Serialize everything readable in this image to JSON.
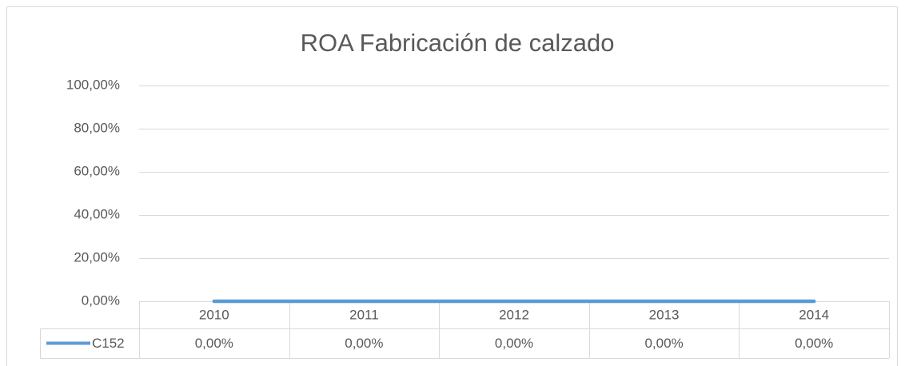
{
  "chart_data": {
    "type": "line",
    "title": "ROA Fabricación de calzado",
    "categories": [
      "2010",
      "2011",
      "2012",
      "2013",
      "2014"
    ],
    "series": [
      {
        "name": "C152",
        "color": "#5b9bd5",
        "values": [
          0,
          0,
          0,
          0,
          0
        ],
        "value_labels": [
          "0,00%",
          "0,00%",
          "0,00%",
          "0,00%",
          "0,00%"
        ]
      }
    ],
    "ylim": [
      0,
      100
    ],
    "yticks": [
      {
        "value": 0,
        "label": "0,00%"
      },
      {
        "value": 20,
        "label": "20,00%"
      },
      {
        "value": 40,
        "label": "40,00%"
      },
      {
        "value": 60,
        "label": "60,00%"
      },
      {
        "value": 80,
        "label": "80,00%"
      },
      {
        "value": 100,
        "label": "100,00%"
      }
    ],
    "grid": true
  }
}
